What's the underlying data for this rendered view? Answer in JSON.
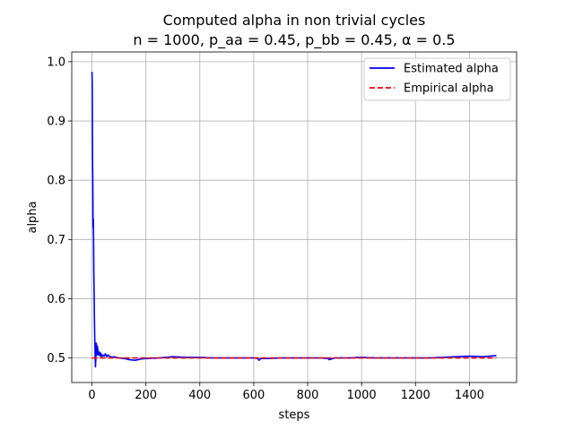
{
  "chart_data": {
    "type": "line",
    "title": "Computed alpha in non trivial cycles",
    "subtitle": "n = 1000, p_aa = 0.45, p_bb = 0.45, α = 0.5",
    "xlabel": "steps",
    "ylabel": "alpha",
    "xlim": [
      -75,
      1575
    ],
    "ylim": [
      0.4585,
      1.0165
    ],
    "xticks": [
      0,
      200,
      400,
      600,
      800,
      1000,
      1200,
      1400
    ],
    "xtick_labels": [
      "0",
      "200",
      "400",
      "600",
      "800",
      "1000",
      "1200",
      "1400"
    ],
    "yticks": [
      0.5,
      0.6,
      0.7,
      0.8,
      0.9,
      1.0
    ],
    "ytick_labels": [
      "0.5",
      "0.6",
      "0.7",
      "0.8",
      "0.9",
      "1.0"
    ],
    "grid": true,
    "legend_position": "top-right",
    "series": [
      {
        "name": "Estimated alpha",
        "color": "#0000ff",
        "style": "solid",
        "x": [
          0,
          1,
          2,
          3,
          4,
          5,
          6,
          7,
          8,
          9,
          10,
          11,
          12,
          13,
          14,
          15,
          16,
          18,
          20,
          22,
          24,
          26,
          28,
          30,
          33,
          36,
          40,
          45,
          50,
          55,
          60,
          65,
          70,
          75,
          80,
          90,
          100,
          120,
          140,
          160,
          180,
          200,
          250,
          300,
          350,
          400,
          450,
          500,
          550,
          600,
          615,
          620,
          625,
          650,
          700,
          750,
          800,
          850,
          875,
          880,
          900,
          950,
          1000,
          1050,
          1100,
          1150,
          1200,
          1250,
          1300,
          1350,
          1400,
          1450,
          1500
        ],
        "y": [
          0.983,
          0.96,
          0.84,
          0.8,
          0.72,
          0.735,
          0.7,
          0.64,
          0.61,
          0.57,
          0.54,
          0.52,
          0.5,
          0.485,
          0.495,
          0.52,
          0.525,
          0.505,
          0.52,
          0.512,
          0.505,
          0.508,
          0.51,
          0.503,
          0.508,
          0.502,
          0.505,
          0.503,
          0.507,
          0.502,
          0.505,
          0.503,
          0.502,
          0.501,
          0.502,
          0.501,
          0.5,
          0.499,
          0.497,
          0.496,
          0.498,
          0.499,
          0.5,
          0.502,
          0.501,
          0.501,
          0.5,
          0.5,
          0.5,
          0.5,
          0.499,
          0.496,
          0.499,
          0.499,
          0.5,
          0.5,
          0.5,
          0.5,
          0.499,
          0.497,
          0.5,
          0.5,
          0.501,
          0.5,
          0.5,
          0.5,
          0.5,
          0.5,
          0.501,
          0.502,
          0.503,
          0.502,
          0.504
        ]
      },
      {
        "name": "Empirical alpha",
        "color": "#ff0000",
        "style": "dashed",
        "x": [
          0,
          1500
        ],
        "y": [
          0.5,
          0.5
        ]
      }
    ]
  }
}
